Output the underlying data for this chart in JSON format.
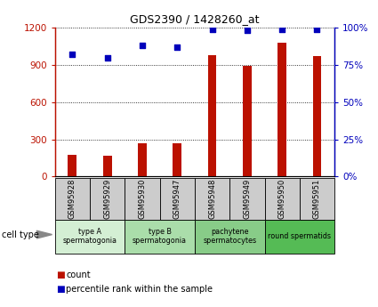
{
  "title": "GDS2390 / 1428260_at",
  "samples": [
    "GSM95928",
    "GSM95929",
    "GSM95930",
    "GSM95947",
    "GSM95948",
    "GSM95949",
    "GSM95950",
    "GSM95951"
  ],
  "counts": [
    175,
    170,
    270,
    265,
    980,
    895,
    1080,
    970
  ],
  "percentiles": [
    82,
    80,
    88,
    87,
    99,
    98,
    99,
    99
  ],
  "ylim_left": [
    0,
    1200
  ],
  "ylim_right": [
    0,
    100
  ],
  "yticks_left": [
    0,
    300,
    600,
    900,
    1200
  ],
  "ytick_labels_left": [
    "0",
    "300",
    "600",
    "900",
    "1200"
  ],
  "yticks_right": [
    0,
    25,
    50,
    75,
    100
  ],
  "ytick_labels_right": [
    "0%",
    "25%",
    "50%",
    "75%",
    "100%"
  ],
  "bar_color": "#bb1100",
  "dot_color": "#0000bb",
  "bar_width": 0.25,
  "cell_groups": [
    {
      "label": "type A\nspermatogonia",
      "indices": [
        0,
        1
      ],
      "color": "#d4efd4"
    },
    {
      "label": "type B\nspermatogonia",
      "indices": [
        2,
        3
      ],
      "color": "#aaddaa"
    },
    {
      "label": "pachytene\nspermatocytes",
      "indices": [
        4,
        5
      ],
      "color": "#88cc88"
    },
    {
      "label": "round spermatids",
      "indices": [
        6,
        7
      ],
      "color": "#55bb55"
    }
  ],
  "sample_box_color": "#cccccc",
  "legend_count_label": "count",
  "legend_pct_label": "percentile rank within the sample",
  "cell_type_label": "cell type"
}
